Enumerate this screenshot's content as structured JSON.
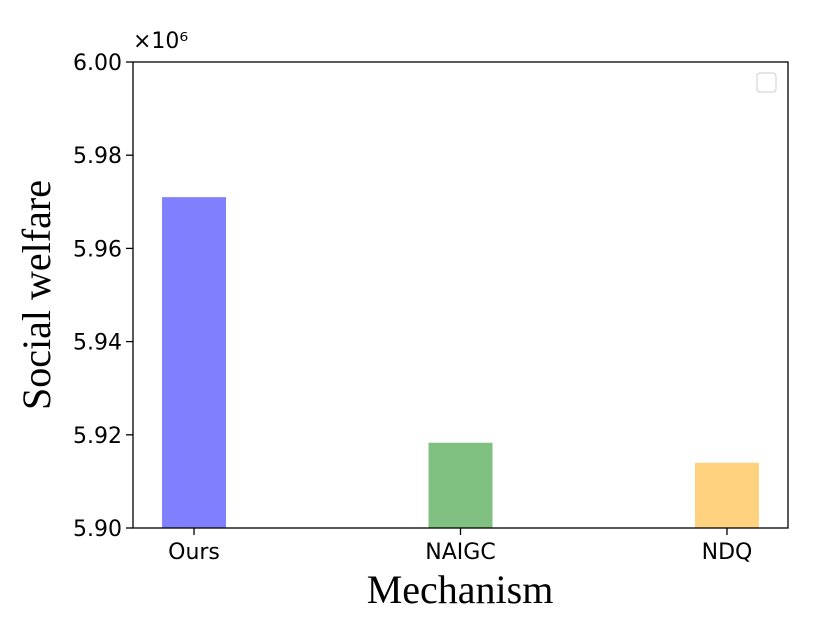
{
  "chart_data": {
    "type": "bar",
    "y_label": "Social welfare",
    "x_label": "Mechanism",
    "y_multiplier": "×10⁶",
    "categories": [
      "Ours",
      "NAIGC",
      "NDQ"
    ],
    "values": [
      5.971,
      5.9183,
      5.914
    ],
    "colors": [
      "#8080ff",
      "#80c080",
      "#ffd280"
    ],
    "ylim": [
      5.9,
      6.0
    ],
    "yticks": [
      {
        "value": 5.9,
        "label": "5.90"
      },
      {
        "value": 5.92,
        "label": "5.92"
      },
      {
        "value": 5.94,
        "label": "5.94"
      },
      {
        "value": 5.96,
        "label": "5.96"
      },
      {
        "value": 5.98,
        "label": "5.98"
      },
      {
        "value": 6.0,
        "label": "6.00"
      }
    ],
    "grid": false
  }
}
